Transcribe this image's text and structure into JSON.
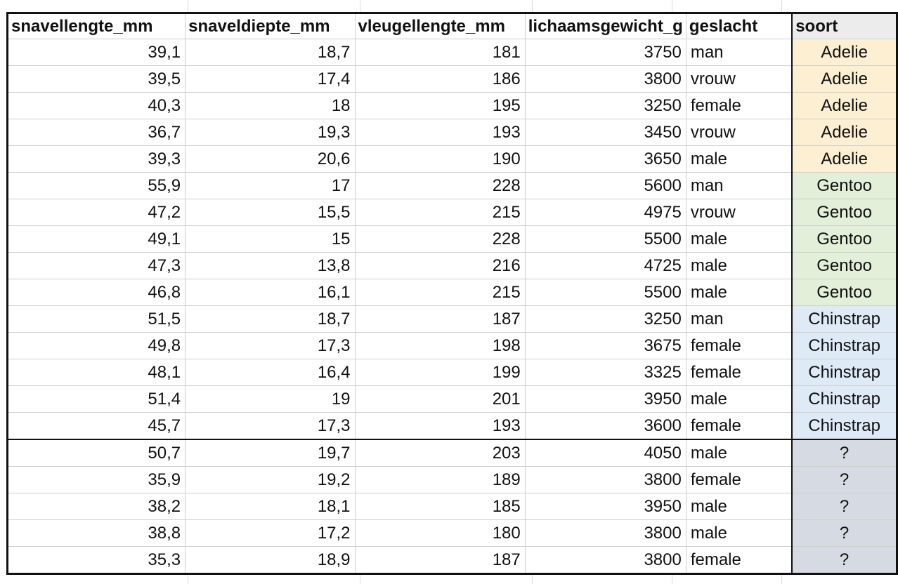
{
  "table": {
    "header": [
      "snavellengte_mm",
      "snaveldiepte_mm",
      "vleugellengte_mm",
      "lichaamsgewicht_g",
      "geslacht",
      "soort"
    ],
    "rows": [
      [
        "39,1",
        "18,7",
        "181",
        "3750",
        "man",
        "Adelie"
      ],
      [
        "39,5",
        "17,4",
        "186",
        "3800",
        "vrouw",
        "Adelie"
      ],
      [
        "40,3",
        "18",
        "195",
        "3250",
        "female",
        "Adelie"
      ],
      [
        "36,7",
        "19,3",
        "193",
        "3450",
        "vrouw",
        "Adelie"
      ],
      [
        "39,3",
        "20,6",
        "190",
        "3650",
        "male",
        "Adelie"
      ],
      [
        "55,9",
        "17",
        "228",
        "5600",
        "man",
        "Gentoo"
      ],
      [
        "47,2",
        "15,5",
        "215",
        "4975",
        "vrouw",
        "Gentoo"
      ],
      [
        "49,1",
        "15",
        "228",
        "5500",
        "male",
        "Gentoo"
      ],
      [
        "47,3",
        "13,8",
        "216",
        "4725",
        "male",
        "Gentoo"
      ],
      [
        "46,8",
        "16,1",
        "215",
        "5500",
        "male",
        "Gentoo"
      ],
      [
        "51,5",
        "18,7",
        "187",
        "3250",
        "man",
        "Chinstrap"
      ],
      [
        "49,8",
        "17,3",
        "198",
        "3675",
        "female",
        "Chinstrap"
      ],
      [
        "48,1",
        "16,4",
        "199",
        "3325",
        "female",
        "Chinstrap"
      ],
      [
        "51,4",
        "19",
        "201",
        "3950",
        "male",
        "Chinstrap"
      ],
      [
        "45,7",
        "17,3",
        "193",
        "3600",
        "female",
        "Chinstrap"
      ],
      [
        "50,7",
        "19,7",
        "203",
        "4050",
        "male",
        "?"
      ],
      [
        "35,9",
        "19,2",
        "189",
        "3800",
        "female",
        "?"
      ],
      [
        "38,2",
        "18,1",
        "185",
        "3950",
        "male",
        "?"
      ],
      [
        "38,8",
        "17,2",
        "180",
        "3800",
        "male",
        "?"
      ],
      [
        "35,3",
        "18,9",
        "187",
        "3800",
        "female",
        "?"
      ]
    ]
  }
}
